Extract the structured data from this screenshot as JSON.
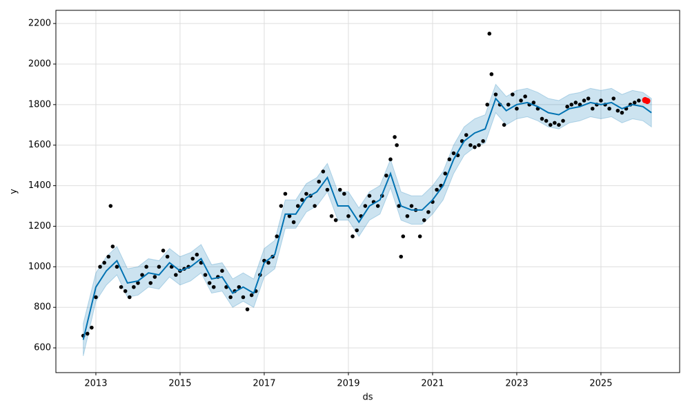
{
  "chart_data": {
    "type": "forecast",
    "xlabel": "ds",
    "ylabel": "y",
    "xlim": [
      2012.05,
      2026.87
    ],
    "ylim": [
      478,
      2265
    ],
    "xticks": [
      2013,
      2015,
      2017,
      2019,
      2021,
      2023,
      2025
    ],
    "yticks": [
      600,
      800,
      1000,
      1200,
      1400,
      1600,
      1800,
      2000,
      2200
    ],
    "grid": true,
    "points": {
      "color": "#000000",
      "x": [
        2012.7,
        2012.8,
        2012.9,
        2013.0,
        2013.1,
        2013.2,
        2013.3,
        2013.35,
        2013.4,
        2013.5,
        2013.6,
        2013.7,
        2013.8,
        2013.9,
        2014.0,
        2014.1,
        2014.2,
        2014.3,
        2014.4,
        2014.5,
        2014.6,
        2014.7,
        2014.8,
        2014.9,
        2015.0,
        2015.1,
        2015.2,
        2015.3,
        2015.4,
        2015.5,
        2015.6,
        2015.7,
        2015.8,
        2015.9,
        2016.0,
        2016.1,
        2016.2,
        2016.3,
        2016.4,
        2016.5,
        2016.6,
        2016.7,
        2016.8,
        2016.9,
        2017.0,
        2017.1,
        2017.2,
        2017.3,
        2017.4,
        2017.5,
        2017.6,
        2017.7,
        2017.8,
        2017.9,
        2018.0,
        2018.1,
        2018.2,
        2018.3,
        2018.4,
        2018.5,
        2018.6,
        2018.7,
        2018.8,
        2018.9,
        2019.0,
        2019.1,
        2019.2,
        2019.3,
        2019.4,
        2019.5,
        2019.6,
        2019.7,
        2019.8,
        2019.9,
        2020.0,
        2020.1,
        2020.15,
        2020.2,
        2020.25,
        2020.3,
        2020.4,
        2020.5,
        2020.6,
        2020.7,
        2020.8,
        2020.9,
        2021.0,
        2021.1,
        2021.2,
        2021.3,
        2021.4,
        2021.5,
        2021.6,
        2021.7,
        2021.8,
        2021.9,
        2022.0,
        2022.1,
        2022.2,
        2022.3,
        2022.35,
        2022.4,
        2022.5,
        2022.6,
        2022.7,
        2022.8,
        2022.9,
        2023.0,
        2023.1,
        2023.2,
        2023.3,
        2023.4,
        2023.5,
        2023.6,
        2023.7,
        2023.8,
        2023.9,
        2024.0,
        2024.1,
        2024.2,
        2024.3,
        2024.4,
        2024.5,
        2024.6,
        2024.7,
        2024.8,
        2024.9,
        2025.0,
        2025.1,
        2025.2,
        2025.3,
        2025.4,
        2025.5,
        2025.6,
        2025.7,
        2025.8,
        2025.9
      ],
      "values": [
        660,
        670,
        700,
        850,
        1000,
        1020,
        1050,
        1300,
        1100,
        1000,
        900,
        880,
        850,
        900,
        920,
        960,
        1000,
        920,
        950,
        1000,
        1080,
        1050,
        1000,
        960,
        980,
        990,
        1000,
        1040,
        1060,
        1020,
        960,
        920,
        900,
        950,
        980,
        900,
        850,
        880,
        900,
        850,
        790,
        860,
        880,
        960,
        1030,
        1020,
        1050,
        1150,
        1300,
        1360,
        1250,
        1220,
        1300,
        1330,
        1360,
        1350,
        1300,
        1420,
        1470,
        1380,
        1250,
        1230,
        1380,
        1360,
        1250,
        1150,
        1180,
        1250,
        1300,
        1350,
        1320,
        1300,
        1350,
        1450,
        1530,
        1640,
        1600,
        1300,
        1050,
        1150,
        1250,
        1300,
        1280,
        1150,
        1230,
        1270,
        1320,
        1380,
        1400,
        1460,
        1530,
        1560,
        1550,
        1620,
        1650,
        1600,
        1590,
        1600,
        1620,
        1800,
        2150,
        1950,
        1850,
        1800,
        1700,
        1800,
        1850,
        1780,
        1820,
        1840,
        1800,
        1810,
        1780,
        1730,
        1720,
        1700,
        1710,
        1700,
        1720,
        1790,
        1800,
        1810,
        1800,
        1820,
        1830,
        1780,
        1800,
        1820,
        1800,
        1780,
        1830,
        1770,
        1760,
        1780,
        1800,
        1810,
        1820
      ]
    },
    "line": {
      "color": "#0072b2",
      "x": [
        2012.7,
        2013.0,
        2013.25,
        2013.5,
        2013.75,
        2014.0,
        2014.25,
        2014.5,
        2014.75,
        2015.0,
        2015.25,
        2015.5,
        2015.75,
        2016.0,
        2016.25,
        2016.5,
        2016.75,
        2017.0,
        2017.25,
        2017.5,
        2017.75,
        2018.0,
        2018.25,
        2018.5,
        2018.75,
        2019.0,
        2019.25,
        2019.5,
        2019.75,
        2020.0,
        2020.25,
        2020.5,
        2020.75,
        2021.0,
        2021.25,
        2021.5,
        2021.75,
        2022.0,
        2022.25,
        2022.5,
        2022.75,
        2023.0,
        2023.25,
        2023.5,
        2023.75,
        2024.0,
        2024.25,
        2024.5,
        2024.75,
        2025.0,
        2025.25,
        2025.5,
        2025.75,
        2026.0,
        2026.2
      ],
      "values": [
        640,
        900,
        980,
        1030,
        920,
        930,
        970,
        960,
        1020,
        980,
        1000,
        1040,
        940,
        950,
        870,
        900,
        870,
        1020,
        1060,
        1260,
        1260,
        1340,
        1370,
        1440,
        1300,
        1300,
        1220,
        1300,
        1330,
        1460,
        1300,
        1280,
        1280,
        1330,
        1400,
        1530,
        1620,
        1660,
        1680,
        1830,
        1770,
        1800,
        1810,
        1790,
        1760,
        1750,
        1780,
        1790,
        1810,
        1800,
        1810,
        1780,
        1800,
        1790,
        1760
      ],
      "lower": [
        560,
        830,
        910,
        960,
        850,
        860,
        900,
        890,
        950,
        910,
        930,
        970,
        870,
        880,
        800,
        830,
        800,
        950,
        990,
        1190,
        1190,
        1270,
        1300,
        1370,
        1230,
        1230,
        1150,
        1230,
        1260,
        1390,
        1230,
        1210,
        1210,
        1260,
        1330,
        1460,
        1550,
        1590,
        1610,
        1760,
        1700,
        1730,
        1740,
        1720,
        1690,
        1680,
        1710,
        1720,
        1740,
        1730,
        1740,
        1710,
        1730,
        1720,
        1690
      ],
      "upper": [
        720,
        970,
        1050,
        1100,
        990,
        1000,
        1040,
        1030,
        1090,
        1050,
        1070,
        1110,
        1010,
        1020,
        940,
        970,
        940,
        1090,
        1130,
        1330,
        1330,
        1410,
        1440,
        1510,
        1370,
        1370,
        1290,
        1370,
        1400,
        1530,
        1370,
        1350,
        1350,
        1400,
        1470,
        1600,
        1690,
        1730,
        1750,
        1900,
        1840,
        1870,
        1880,
        1860,
        1830,
        1820,
        1850,
        1860,
        1880,
        1870,
        1880,
        1850,
        1870,
        1860,
        1830
      ],
      "band_color": "#0072b2"
    },
    "highlight": {
      "color": "#ff0000",
      "x": [
        2026.05,
        2026.1
      ],
      "values": [
        1822,
        1818
      ]
    }
  }
}
